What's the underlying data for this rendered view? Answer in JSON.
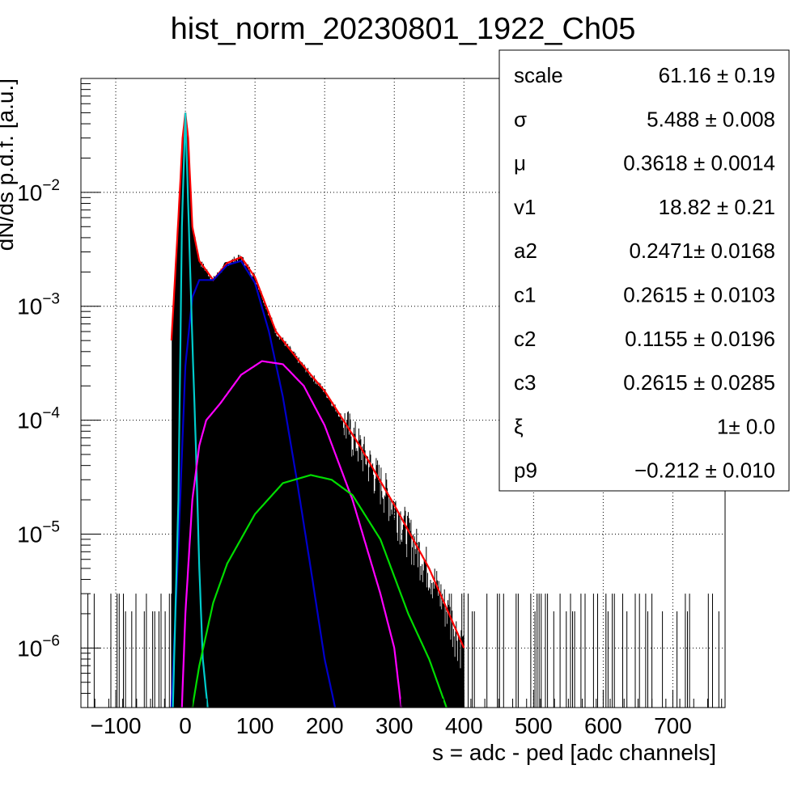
{
  "chart_data": {
    "type": "line",
    "title": "hist_norm_20230801_1922_Ch05",
    "xlabel": "s = adc - ped [adc channels]",
    "ylabel": "dN/ds p.d.f. [a.u.]",
    "xlim": [
      -150,
      775
    ],
    "ylim": [
      3e-07,
      0.1
    ],
    "yscale": "log",
    "x_ticks": [
      -100,
      0,
      100,
      200,
      300,
      400,
      500,
      600,
      700
    ],
    "x_tick_labels": [
      "−100",
      "0",
      "100",
      "200",
      "300",
      "400",
      "500",
      "600",
      "700"
    ],
    "y_ticks": [
      1e-06,
      1e-05,
      0.0001,
      0.001,
      0.01
    ],
    "y_tick_labels": [
      {
        "mant": "10",
        "exp": "−6"
      },
      {
        "mant": "10",
        "exp": "−5"
      },
      {
        "mant": "10",
        "exp": "−4"
      },
      {
        "mant": "10",
        "exp": "−3"
      },
      {
        "mant": "10",
        "exp": "−2"
      }
    ],
    "grid": true,
    "series": [
      {
        "color": "#ff0000",
        "x": [
          -20,
          -10,
          -4,
          0,
          4,
          10,
          20,
          40,
          60,
          80,
          100,
          130,
          160,
          200,
          250,
          300,
          350,
          400
        ],
        "y": [
          0.0005,
          0.006,
          0.03,
          0.05,
          0.03,
          0.005,
          0.0025,
          0.0017,
          0.0024,
          0.0027,
          0.0018,
          0.0006,
          0.00035,
          0.00018,
          6e-05,
          1.8e-05,
          5e-06,
          1e-06
        ]
      },
      {
        "color": "#0000cc",
        "x": [
          -20,
          -10,
          0,
          10,
          20,
          40,
          60,
          80,
          100,
          120,
          140,
          160,
          180,
          200,
          215
        ],
        "y": [
          3e-07,
          8e-06,
          0.0003,
          0.0012,
          0.0017,
          0.0017,
          0.0023,
          0.0025,
          0.0016,
          0.0006,
          0.00016,
          3e-05,
          5e-06,
          8e-07,
          3e-07
        ]
      },
      {
        "color": "#00cccc",
        "x": [
          -18,
          -10,
          -5,
          0,
          5,
          10,
          15,
          20,
          25,
          32
        ],
        "y": [
          3e-07,
          2e-05,
          0.005,
          0.05,
          0.005,
          0.0005,
          6e-05,
          5e-06,
          8e-07,
          3e-07
        ]
      },
      {
        "color": "#ff00ff",
        "x": [
          -5,
          0,
          10,
          20,
          30,
          50,
          80,
          110,
          140,
          170,
          200,
          240,
          280,
          300,
          310
        ],
        "y": [
          3e-07,
          2e-06,
          2e-05,
          6e-05,
          0.0001,
          0.00014,
          0.00025,
          0.00033,
          0.00031,
          0.0002,
          9e-05,
          2e-05,
          3e-06,
          1e-06,
          3e-07
        ]
      },
      {
        "color": "#00dd00",
        "x": [
          10,
          20,
          40,
          60,
          100,
          140,
          180,
          210,
          240,
          280,
          320,
          350,
          375
        ],
        "y": [
          3e-07,
          7e-07,
          2.5e-06,
          5.5e-06,
          1.5e-05,
          2.8e-05,
          3.3e-05,
          3e-05,
          2.2e-05,
          9e-06,
          2e-06,
          8e-07,
          3e-07
        ]
      }
    ],
    "bins": {
      "peak_x": 0,
      "peak_y": 0.05,
      "noise_level": 3e-06
    }
  },
  "stats": {
    "params": [
      {
        "name": "scale",
        "value": "61.16 ± 0.19"
      },
      {
        "name": "σ",
        "value": "5.488 ± 0.008"
      },
      {
        "name": "μ",
        "value": "0.3618 ± 0.0014"
      },
      {
        "name": "v1",
        "value": "18.82 ± 0.21"
      },
      {
        "name": "a2",
        "value": "0.2471± 0.0168"
      },
      {
        "name": "c1",
        "value": "0.2615 ± 0.0103"
      },
      {
        "name": "c2",
        "value": "0.1155 ± 0.0196"
      },
      {
        "name": "c3",
        "value": "0.2615 ± 0.0285"
      },
      {
        "name": "ξ",
        "value": "1± 0.0"
      },
      {
        "name": "p9",
        "value": "−0.212 ± 0.010"
      }
    ]
  }
}
